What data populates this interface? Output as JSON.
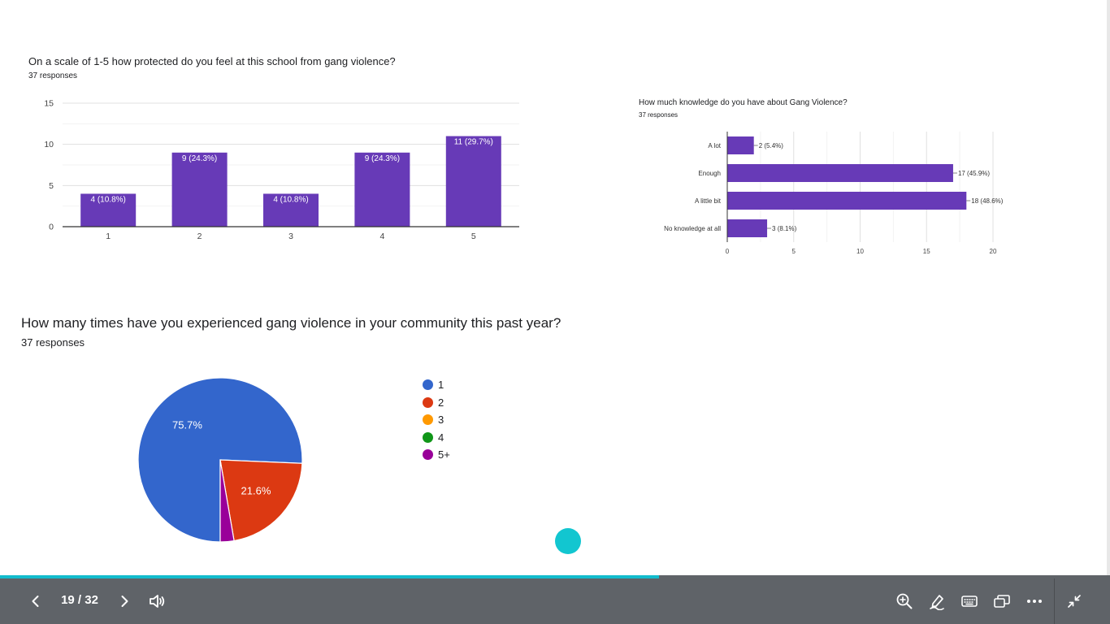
{
  "slide": {
    "bar_chart": {
      "title": "On a scale of 1-5 how protected do you feel at this school from gang violence?",
      "subtitle": "37 responses"
    },
    "hbar_chart": {
      "title": "How much knowledge do you have about Gang Violence?",
      "subtitle": "37 responses"
    },
    "pie_chart": {
      "title": "How many times have you experienced gang violence in your community this past year?",
      "subtitle": "37 responses"
    }
  },
  "chart_data": [
    {
      "type": "bar",
      "title": "On a scale of 1-5 how protected do you feel at this school from gang violence?",
      "subtitle": "37 responses",
      "categories": [
        "1",
        "2",
        "3",
        "4",
        "5"
      ],
      "values": [
        4,
        9,
        4,
        9,
        11
      ],
      "data_labels": [
        "4 (10.8%)",
        "9 (24.3%)",
        "4 (10.8%)",
        "9 (24.3%)",
        "11 (29.7%)"
      ],
      "ylim": [
        0,
        15
      ],
      "yticks": [
        0,
        5,
        10,
        15
      ],
      "color": "#673ab7",
      "grid": true
    },
    {
      "type": "bar",
      "orientation": "horizontal",
      "title": "How much knowledge do you have about Gang Violence?",
      "subtitle": "37 responses",
      "categories": [
        "A lot",
        "Enough",
        "A little bit",
        "No knowledge at all"
      ],
      "values": [
        2,
        17,
        18,
        3
      ],
      "data_labels": [
        "2 (5.4%)",
        "17 (45.9%)",
        "18 (48.6%)",
        "3 (8.1%)"
      ],
      "xlim": [
        0,
        20
      ],
      "xticks": [
        0,
        5,
        10,
        15,
        20
      ],
      "color": "#673ab7",
      "grid": true
    },
    {
      "type": "pie",
      "title": "How many times have you experienced gang violence in your community this past year?",
      "subtitle": "37 responses",
      "categories": [
        "1",
        "2",
        "3",
        "4",
        "5+"
      ],
      "values": [
        28,
        8,
        0,
        0,
        1
      ],
      "data_labels": [
        "75.7%",
        "21.6%",
        "",
        "",
        ""
      ],
      "colors": [
        "#3366cc",
        "#dc3912",
        "#ff9900",
        "#109618",
        "#990099"
      ],
      "legend": "right"
    }
  ],
  "toolbar": {
    "page_counter": "19 / 32",
    "progress": 0.594,
    "progress_color": "#12bccd",
    "icons": {
      "prev": "chevron-left-icon",
      "next": "chevron-right-icon",
      "audio": "speaker-icon",
      "zoom": "zoom-in-icon",
      "pen": "pen-icon",
      "keyboard": "keyboard-icon",
      "window": "picture-in-picture-icon",
      "more": "more-horizontal-icon",
      "exit": "exit-fullscreen-icon"
    }
  }
}
